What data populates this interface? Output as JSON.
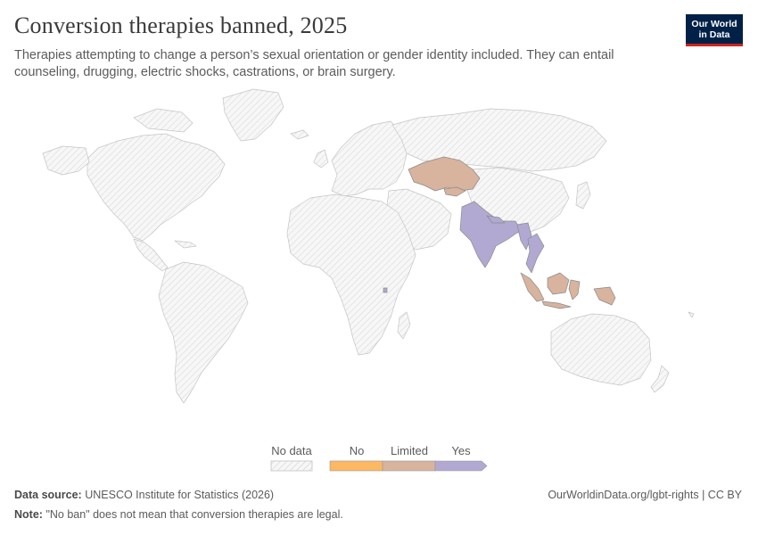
{
  "header": {
    "title": "Conversion therapies banned, 2025",
    "subtitle": "Therapies attempting to change a person’s sexual orientation or gender identity included. They can entail counseling, drugging, electric shocks, castrations, or brain surgery."
  },
  "logo": {
    "line1": "Our World",
    "line2": "in Data"
  },
  "colors": {
    "no_data": "#f2f2f2",
    "no": "#fdb863",
    "limited": "#d8b39d",
    "yes": "#b1a9d2",
    "border": "#c8c8c8",
    "hatch": "#d6d6d6"
  },
  "legend": {
    "no_data_label": "No data",
    "categories": [
      {
        "label": "No",
        "color": "#fdb863"
      },
      {
        "label": "Limited",
        "color": "#d8b39d"
      },
      {
        "label": "Yes",
        "color": "#b1a9d2"
      }
    ]
  },
  "map_data": {
    "limited": [
      "Kazakhstan",
      "Kyrgyzstan",
      "Indonesia",
      "Papua New Guinea"
    ],
    "yes": [
      "India",
      "Nepal",
      "Myanmar",
      "Thailand",
      "Burundi"
    ]
  },
  "footer": {
    "source_label": "Data source:",
    "source_text": "UNESCO Institute for Statistics (2026)",
    "url": "OurWorldinData.org/lgbt-rights | CC BY",
    "note_label": "Note:",
    "note_text": "\"No ban\" does not mean that conversion therapies are legal."
  }
}
